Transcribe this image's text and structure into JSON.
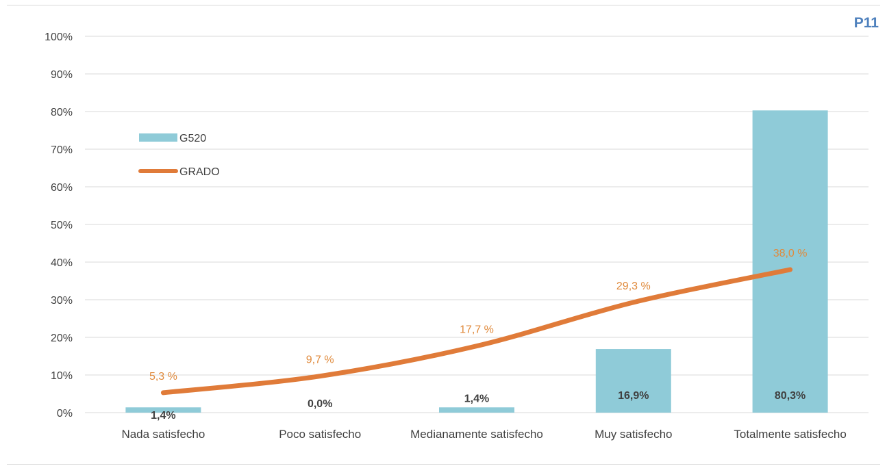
{
  "chart_tag": "P11",
  "colors": {
    "bar": "#8fcbd8",
    "line": "#e07b39",
    "line_label": "#e08a3c",
    "grid": "#d9d9d9"
  },
  "chart_data": {
    "type": "bar",
    "categories": [
      "Nada satisfecho",
      "Poco satisfecho",
      "Medianamente satisfecho",
      "Muy satisfecho",
      "Totalmente satisfecho"
    ],
    "ylim": [
      0,
      100
    ],
    "y_ticks": [
      "0%",
      "10%",
      "20%",
      "30%",
      "40%",
      "50%",
      "60%",
      "70%",
      "80%",
      "90%",
      "100%"
    ],
    "grid": true,
    "legend_position": "upper-left",
    "series": [
      {
        "name": "G520",
        "type": "bar",
        "values": [
          1.4,
          0.0,
          1.4,
          16.9,
          80.3
        ],
        "labels": [
          "1,4%",
          "0,0%",
          "1,4%",
          "16,9%",
          "80,3%"
        ]
      },
      {
        "name": "GRADO",
        "type": "line",
        "values": [
          5.3,
          9.7,
          17.7,
          29.3,
          38.0
        ],
        "labels": [
          "5,3 %",
          "9,7 %",
          "17,7 %",
          "29,3 %",
          "38,0 %"
        ]
      }
    ]
  }
}
